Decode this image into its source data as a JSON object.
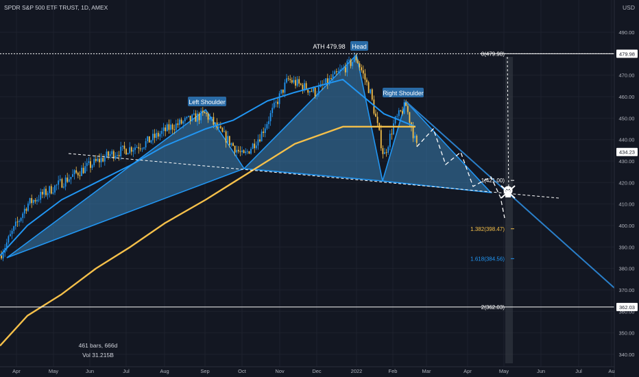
{
  "header": {
    "symbol_title": "SPDR S&P 500 ETF TRUST, 1D, AMEX",
    "currency": "USD"
  },
  "info": {
    "bars_label": "461 bars, 666d",
    "vol_label": "Vol 31.215B"
  },
  "annotations": {
    "ath_label": "ATH 479.98",
    "head": "Head",
    "left_shoulder": "Left Shoulder",
    "right_shoulder": "Right Shoulder"
  },
  "fib_levels": [
    {
      "label": "0(479.98)",
      "value": 479.98,
      "color": "#ffffff"
    },
    {
      "label": "1(421.00)",
      "value": 421.0,
      "color": "#ffffff"
    },
    {
      "label": "1.382(398.47)",
      "value": 398.47,
      "color": "#f5c04a"
    },
    {
      "label": "1.618(384.56)",
      "value": 384.56,
      "color": "#2196f3"
    },
    {
      "label": "2(362.03)",
      "value": 362.03,
      "color": "#ffffff"
    }
  ],
  "price_badges": [
    {
      "value": "479.98",
      "price": 479.98
    },
    {
      "value": "434.23",
      "price": 434.23
    },
    {
      "value": "362.03",
      "price": 362.03
    }
  ],
  "colors": {
    "background": "#131722",
    "up_candle": "#2196f3",
    "down_candle": "#f5c04a",
    "ma_short": "#2196f3",
    "ma_long": "#f5c04a",
    "pattern_fill": "#3a7fb3",
    "grid": "#1e222d"
  },
  "chart_data": {
    "type": "candlestick",
    "y_axis_ticks": [
      490,
      480,
      470,
      460,
      450,
      440,
      430,
      420,
      410,
      400,
      390,
      380,
      370,
      360,
      350,
      340
    ],
    "ylim": [
      337,
      498
    ],
    "x_axis_ticks": [
      "Apr",
      "May",
      "Jun",
      "Jul",
      "Aug",
      "Sep",
      "Oct",
      "Nov",
      "Dec",
      "2022",
      "Feb",
      "Mar",
      "Apr",
      "May",
      "Jun",
      "Jul",
      "Au"
    ],
    "price_path": [
      {
        "x": "Mar 2021",
        "y": 389
      },
      {
        "x": "Apr 2021",
        "y": 410
      },
      {
        "x": "May 2021",
        "y": 418
      },
      {
        "x": "Jun 2021",
        "y": 425
      },
      {
        "x": "Jul 2021",
        "y": 435
      },
      {
        "x": "Aug 2021",
        "y": 445
      },
      {
        "x": "Sep 2021",
        "y": 452
      },
      {
        "x": "Oct 2021",
        "y": 434
      },
      {
        "x": "Nov 2021",
        "y": 467
      },
      {
        "x": "Dec 2021",
        "y": 470
      },
      {
        "x": "Jan 2022",
        "y": 478
      },
      {
        "x": "Feb 2022",
        "y": 440
      },
      {
        "x": "Mar 2022",
        "y": 434
      }
    ],
    "series": [
      {
        "name": "",
        "color": "#2196f3",
        "values": [
          386,
          400,
          412,
          420,
          428,
          437,
          445,
          449,
          458,
          462,
          468,
          452,
          446
        ]
      },
      {
        "name": "",
        "color": "#f5c04a",
        "values": [
          344,
          358,
          368,
          380,
          390,
          401,
          412,
          420,
          430,
          438,
          446,
          446,
          446
        ]
      }
    ],
    "grid": true,
    "title": ""
  }
}
